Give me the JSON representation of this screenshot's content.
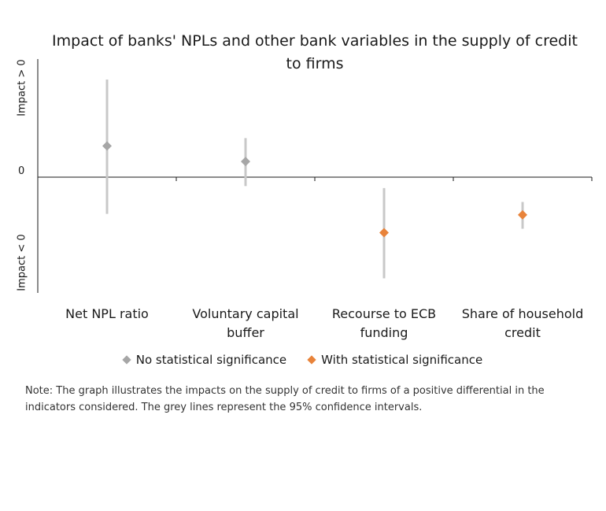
{
  "chart_data": {
    "type": "scatter",
    "title": "Impact of banks' NPLs and other bank variables in the supply of credit to firms",
    "y_labels": {
      "positive": "Impact > 0",
      "zero": "0",
      "negative": "Impact < 0"
    },
    "ylim": [
      -1.0,
      1.0
    ],
    "categories": [
      "Net NPL ratio",
      "Voluntary capital buffer",
      "Recourse to ECB funding",
      "Share of household credit"
    ],
    "points": [
      {
        "category": "Net NPL ratio",
        "value": 0.32,
        "ci_low": -0.37,
        "ci_high": 1.0,
        "significant": false
      },
      {
        "category": "Voluntary capital buffer",
        "value": 0.16,
        "ci_low": -0.09,
        "ci_high": 0.4,
        "significant": false
      },
      {
        "category": "Recourse to ECB funding",
        "value": -0.56,
        "ci_low": -1.02,
        "ci_high": -0.11,
        "significant": true
      },
      {
        "category": "Share of household credit",
        "value": -0.38,
        "ci_low": -0.52,
        "ci_high": -0.25,
        "significant": true
      }
    ],
    "legend": [
      {
        "label": "No statistical significance",
        "color": "#a6a6a6"
      },
      {
        "label": "With statistical significance",
        "color": "#e8833a"
      }
    ],
    "legend_position": "bottom",
    "grid": false
  },
  "colors": {
    "ci_line": "#c8c8c8",
    "axis": "#1a1a1a"
  },
  "note": "Note: The graph illustrates the impacts on the supply of credit to firms of a positive differential in the indicators considered. The grey lines represent the 95% confidence intervals."
}
